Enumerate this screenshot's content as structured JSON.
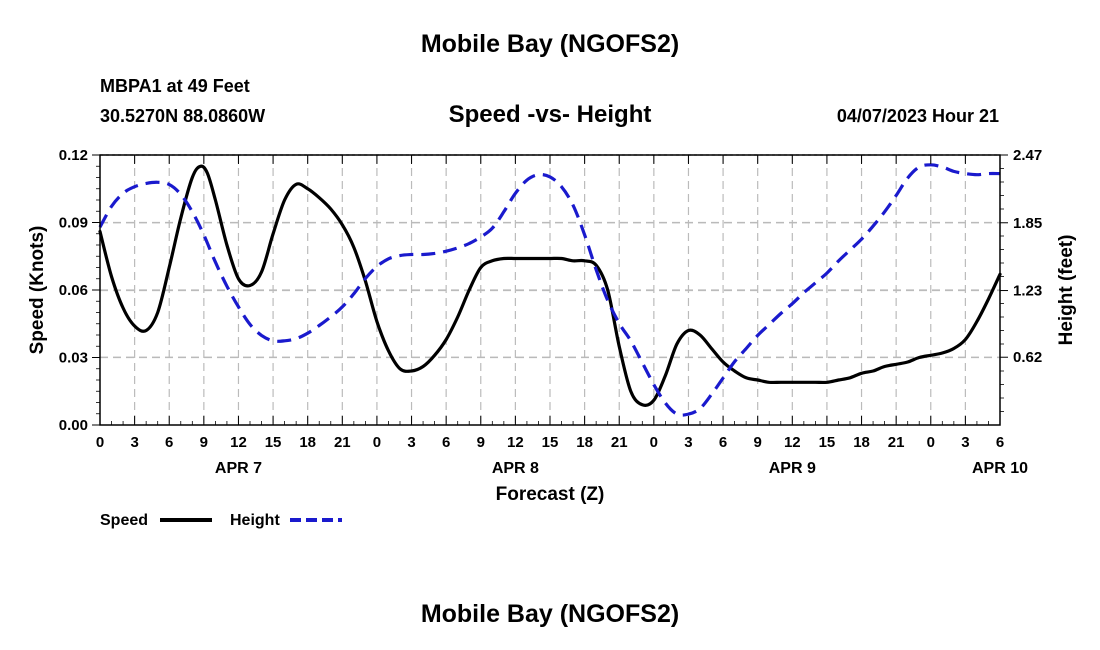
{
  "header": {
    "title": "Mobile Bay (NGOFS2)",
    "station": "MBPA1 at 49 Feet",
    "coords": "30.5270N  88.0860W",
    "subtitle": "Speed -vs- Height",
    "datetime": "04/07/2023 Hour 21",
    "footer_title": "Mobile Bay (NGOFS2)"
  },
  "colors": {
    "speed": "#000000",
    "height": "#1a1acd",
    "grid": "#bbbbbb"
  },
  "chart_data": {
    "type": "line",
    "title": "Speed -vs- Height",
    "xlabel": "Forecast (Z)",
    "ylabel": "Speed (Knots)",
    "y2label": "Height (feet)",
    "xlim": [
      0,
      78
    ],
    "ylim": [
      0,
      0.12
    ],
    "y2lim": [
      0.0,
      2.47
    ],
    "yticks": [
      "0.00",
      "0.03",
      "0.06",
      "0.09",
      "0.12"
    ],
    "y2ticks": [
      "0.62",
      "1.23",
      "1.85",
      "2.47"
    ],
    "xtick_labels": [
      "0",
      "3",
      "6",
      "9",
      "12",
      "15",
      "18",
      "21",
      "0",
      "3",
      "6",
      "9",
      "12",
      "15",
      "18",
      "21",
      "0",
      "3",
      "6",
      "9",
      "12",
      "15",
      "18",
      "21",
      "0",
      "3",
      "6"
    ],
    "date_labels": [
      {
        "text": "APR 7",
        "at": 12
      },
      {
        "text": "APR 8",
        "at": 36
      },
      {
        "text": "APR 9",
        "at": 60
      },
      {
        "text": "APR 10",
        "at": 78
      }
    ],
    "legend": {
      "speed_label": "Speed",
      "height_label": "Height"
    },
    "series": [
      {
        "name": "Speed",
        "axis": "left",
        "style": "solid",
        "x": [
          0,
          1,
          2,
          3,
          4,
          5,
          6,
          7,
          8,
          8.7,
          9.3,
          10,
          11,
          12,
          13,
          14,
          15,
          16,
          17,
          18,
          19,
          20,
          21,
          22,
          23,
          24,
          25,
          26,
          27,
          28,
          29,
          30,
          31,
          32,
          33,
          34,
          35,
          36,
          37,
          38,
          39,
          40,
          41,
          42,
          43,
          44,
          45,
          46,
          47,
          48,
          49,
          50,
          51,
          52,
          53,
          54,
          55,
          56,
          57,
          58,
          59,
          60,
          61,
          62,
          63,
          64,
          65,
          66,
          67,
          68,
          69,
          70,
          71,
          72,
          73,
          74,
          75,
          76,
          77,
          78
        ],
        "values": [
          0.086,
          0.066,
          0.052,
          0.044,
          0.042,
          0.05,
          0.07,
          0.092,
          0.11,
          0.115,
          0.112,
          0.1,
          0.08,
          0.065,
          0.062,
          0.068,
          0.085,
          0.1,
          0.107,
          0.105,
          0.101,
          0.096,
          0.089,
          0.079,
          0.064,
          0.046,
          0.033,
          0.025,
          0.024,
          0.026,
          0.031,
          0.038,
          0.048,
          0.06,
          0.07,
          0.073,
          0.074,
          0.074,
          0.074,
          0.074,
          0.074,
          0.074,
          0.073,
          0.073,
          0.071,
          0.06,
          0.035,
          0.015,
          0.009,
          0.011,
          0.022,
          0.036,
          0.042,
          0.04,
          0.034,
          0.028,
          0.024,
          0.021,
          0.02,
          0.019,
          0.019,
          0.019,
          0.019,
          0.019,
          0.019,
          0.02,
          0.021,
          0.023,
          0.024,
          0.026,
          0.027,
          0.028,
          0.03,
          0.031,
          0.032,
          0.034,
          0.038,
          0.046,
          0.056,
          0.067
        ]
      },
      {
        "name": "Height",
        "axis": "right",
        "style": "dashed",
        "x": [
          0,
          1,
          2,
          3,
          4,
          5,
          6,
          7,
          8,
          9,
          10,
          11,
          12,
          13,
          14,
          15,
          16,
          17,
          18,
          19,
          20,
          21,
          22,
          23,
          24,
          25,
          26,
          27,
          28,
          29,
          30,
          31,
          32,
          33,
          34,
          35,
          36,
          37,
          38,
          39,
          40,
          41,
          42,
          43,
          44,
          45,
          46,
          47,
          48,
          49,
          50,
          51,
          52,
          53,
          54,
          55,
          56,
          57,
          58,
          59,
          60,
          61,
          62,
          63,
          64,
          65,
          66,
          67,
          68,
          69,
          70,
          71,
          72,
          73,
          74,
          75,
          76,
          77,
          78
        ],
        "values": [
          1.81,
          2.0,
          2.12,
          2.18,
          2.21,
          2.22,
          2.2,
          2.11,
          1.95,
          1.74,
          1.49,
          1.27,
          1.08,
          0.92,
          0.82,
          0.77,
          0.77,
          0.79,
          0.84,
          0.91,
          0.99,
          1.08,
          1.2,
          1.34,
          1.45,
          1.52,
          1.55,
          1.56,
          1.56,
          1.57,
          1.59,
          1.62,
          1.66,
          1.72,
          1.8,
          1.95,
          2.12,
          2.24,
          2.29,
          2.27,
          2.18,
          2.01,
          1.74,
          1.42,
          1.14,
          0.93,
          0.77,
          0.57,
          0.37,
          0.2,
          0.1,
          0.1,
          0.15,
          0.28,
          0.43,
          0.58,
          0.7,
          0.82,
          0.92,
          1.02,
          1.11,
          1.21,
          1.3,
          1.39,
          1.5,
          1.6,
          1.7,
          1.82,
          1.95,
          2.1,
          2.26,
          2.36,
          2.38,
          2.36,
          2.32,
          2.3,
          2.29,
          2.3,
          2.3
        ]
      }
    ]
  }
}
